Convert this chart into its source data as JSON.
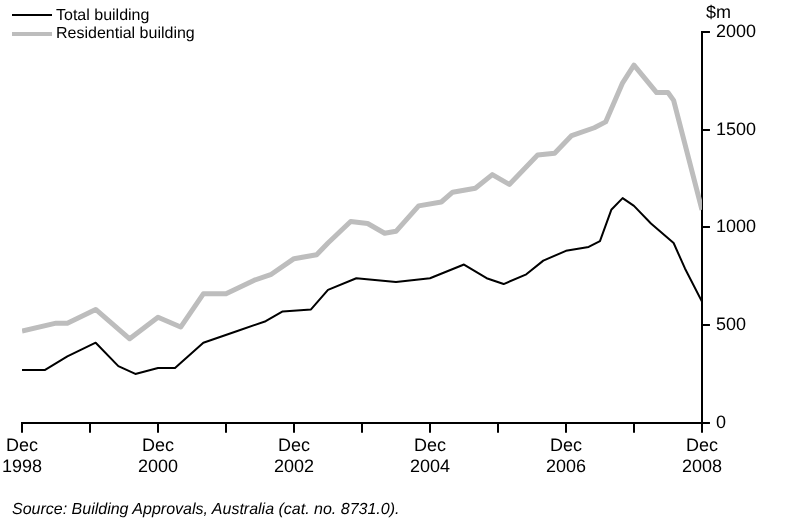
{
  "chart_data": {
    "type": "line",
    "ylabel": "$m",
    "legend": "top left",
    "grid": false,
    "marker": "none",
    "line_style": "solid",
    "xlim": [
      "1998-12",
      "2008-12"
    ],
    "xticks": [
      {
        "value": "1998-12",
        "label": "Dec 1998"
      },
      {
        "value": "1999-12",
        "label": null
      },
      {
        "value": "2000-12",
        "label": "Dec 2000"
      },
      {
        "value": "2001-12",
        "label": null
      },
      {
        "value": "2002-12",
        "label": "Dec 2002"
      },
      {
        "value": "2003-12",
        "label": null
      },
      {
        "value": "2004-12",
        "label": "Dec 2004"
      },
      {
        "value": "2005-12",
        "label": null
      },
      {
        "value": "2006-12",
        "label": "Dec 2006"
      },
      {
        "value": "2007-12",
        "label": null
      },
      {
        "value": "2008-12",
        "label": "Dec 2008"
      }
    ],
    "ylim": [
      0,
      2000
    ],
    "yticks": [
      0,
      500,
      1000,
      1500,
      2000
    ],
    "series": [
      {
        "name": "Total building",
        "color": "#000000",
        "x": [
          "1998-12",
          "1999-04",
          "1999-08",
          "2000-01",
          "2000-05",
          "2000-08",
          "2000-12",
          "2001-03",
          "2001-08",
          "2002-02",
          "2002-07",
          "2002-10",
          "2003-03",
          "2003-06",
          "2003-11",
          "2004-06",
          "2004-12",
          "2005-06",
          "2005-10",
          "2006-01",
          "2006-05",
          "2006-08",
          "2006-12",
          "2007-04",
          "2007-06",
          "2007-08",
          "2007-10",
          "2007-12",
          "2008-03",
          "2008-07",
          "2008-09",
          "2008-12"
        ],
        "values": [
          270,
          270,
          340,
          410,
          290,
          250,
          280,
          280,
          410,
          470,
          520,
          570,
          580,
          680,
          740,
          720,
          740,
          810,
          740,
          710,
          760,
          830,
          880,
          900,
          930,
          1090,
          1150,
          1110,
          1020,
          920,
          790,
          620
        ]
      },
      {
        "name": "Residential building",
        "color": "#bdbdbd",
        "x": [
          "1998-12",
          "1999-06",
          "1999-08",
          "2000-01",
          "2000-07",
          "2000-12",
          "2001-04",
          "2001-08",
          "2001-12",
          "2002-05",
          "2002-08",
          "2002-12",
          "2003-04",
          "2003-06",
          "2003-10",
          "2004-01",
          "2004-04",
          "2004-06",
          "2004-10",
          "2005-02",
          "2005-04",
          "2005-08",
          "2005-11",
          "2006-02",
          "2006-07",
          "2006-10",
          "2007-01",
          "2007-05",
          "2007-07",
          "2007-10",
          "2007-12",
          "2008-02",
          "2008-04",
          "2008-06",
          "2008-07",
          "2008-12"
        ],
        "values": [
          470,
          510,
          510,
          580,
          430,
          540,
          490,
          660,
          660,
          730,
          760,
          840,
          860,
          920,
          1030,
          1020,
          970,
          980,
          1110,
          1130,
          1180,
          1200,
          1270,
          1220,
          1370,
          1380,
          1470,
          1510,
          1540,
          1740,
          1830,
          1760,
          1690,
          1690,
          1650,
          1090
        ]
      }
    ],
    "annotations": [
      "Source: Building Approvals, Australia (cat. no. 8731.0)."
    ]
  }
}
